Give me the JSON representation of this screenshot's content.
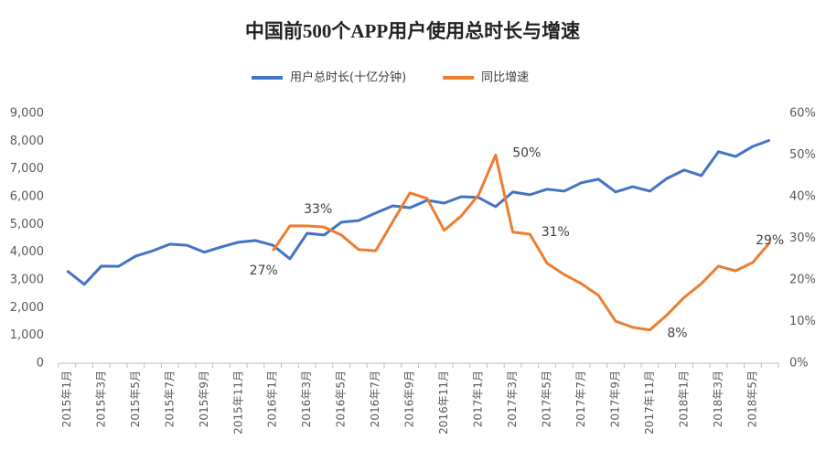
{
  "chart_data": {
    "type": "line",
    "title": "中国前500个APP用户使用总时长与增速",
    "categories": [
      "2015年1月",
      null,
      "2015年3月",
      null,
      "2015年5月",
      null,
      "2015年7月",
      null,
      "2015年9月",
      null,
      "2015年11月",
      null,
      "2016年1月",
      null,
      "2016年3月",
      null,
      "2016年5月",
      null,
      "2016年7月",
      null,
      "2016年9月",
      null,
      "2016年11月",
      null,
      "2017年1月",
      null,
      "2017年3月",
      null,
      "2017年5月",
      null,
      "2017年7月",
      null,
      "2017年9月",
      null,
      "2017年11月",
      null,
      "2018年1月",
      null,
      "2018年3月",
      null,
      "2018年5月",
      null
    ],
    "series": [
      {
        "name": "用户总时长(十亿分钟)",
        "color": "#4472c4",
        "axis": "y",
        "values": [
          3330,
          2840,
          3500,
          3490,
          3860,
          4050,
          4290,
          4250,
          4000,
          4190,
          4360,
          4420,
          4250,
          3760,
          4680,
          4620,
          5080,
          5140,
          5410,
          5670,
          5600,
          5870,
          5770,
          6000,
          5970,
          5640,
          6170,
          6070,
          6270,
          6200,
          6500,
          6630,
          6170,
          6360,
          6200,
          6660,
          6960,
          6760,
          7620,
          7450,
          7810,
          8040
        ]
      },
      {
        "name": "同比增速",
        "color": "#ed7d31",
        "axis": "y2",
        "values": [
          null,
          null,
          null,
          null,
          null,
          null,
          null,
          null,
          null,
          null,
          null,
          null,
          27,
          33,
          33,
          32.7,
          30.8,
          27.3,
          27,
          34,
          40.9,
          39.6,
          31.9,
          35.4,
          40.4,
          50,
          31.5,
          31,
          24,
          21.3,
          19.1,
          16.3,
          10.1,
          8.6,
          8,
          11.6,
          15.8,
          19.1,
          23.3,
          22.2,
          24.2,
          29
        ],
        "value_labels": [
          null,
          null,
          null,
          null,
          null,
          null,
          null,
          null,
          null,
          null,
          null,
          null,
          "27%",
          null,
          "33%",
          null,
          null,
          null,
          null,
          null,
          null,
          null,
          null,
          null,
          null,
          "50%",
          null,
          "31%",
          null,
          null,
          null,
          null,
          null,
          null,
          "8%",
          null,
          null,
          null,
          null,
          null,
          null,
          "29%"
        ]
      }
    ],
    "ylim": [
      0,
      9000
    ],
    "yticks": [
      0,
      {
        "value": 1000,
        "label": "1,000"
      },
      {
        "value": 2000,
        "label": "2,000"
      },
      {
        "value": 3000,
        "label": "3,000"
      },
      {
        "value": 4000,
        "label": "4,000"
      },
      {
        "value": 5000,
        "label": "5,000"
      },
      {
        "value": 6000,
        "label": "6,000"
      },
      {
        "value": 7000,
        "label": "7,000"
      },
      {
        "value": 8000,
        "label": "8,000"
      },
      {
        "value": 9000,
        "label": "9,000"
      }
    ],
    "y2lim": [
      0,
      60
    ],
    "y2ticks": [
      {
        "value": 0,
        "label": "0%"
      },
      {
        "value": 10,
        "label": "10%"
      },
      {
        "value": 20,
        "label": "20%"
      },
      {
        "value": 30,
        "label": "30%"
      },
      {
        "value": 40,
        "label": "40%"
      },
      {
        "value": 50,
        "label": "50%"
      },
      {
        "value": 60,
        "label": "60%"
      }
    ],
    "grid": false,
    "legend": "top"
  }
}
